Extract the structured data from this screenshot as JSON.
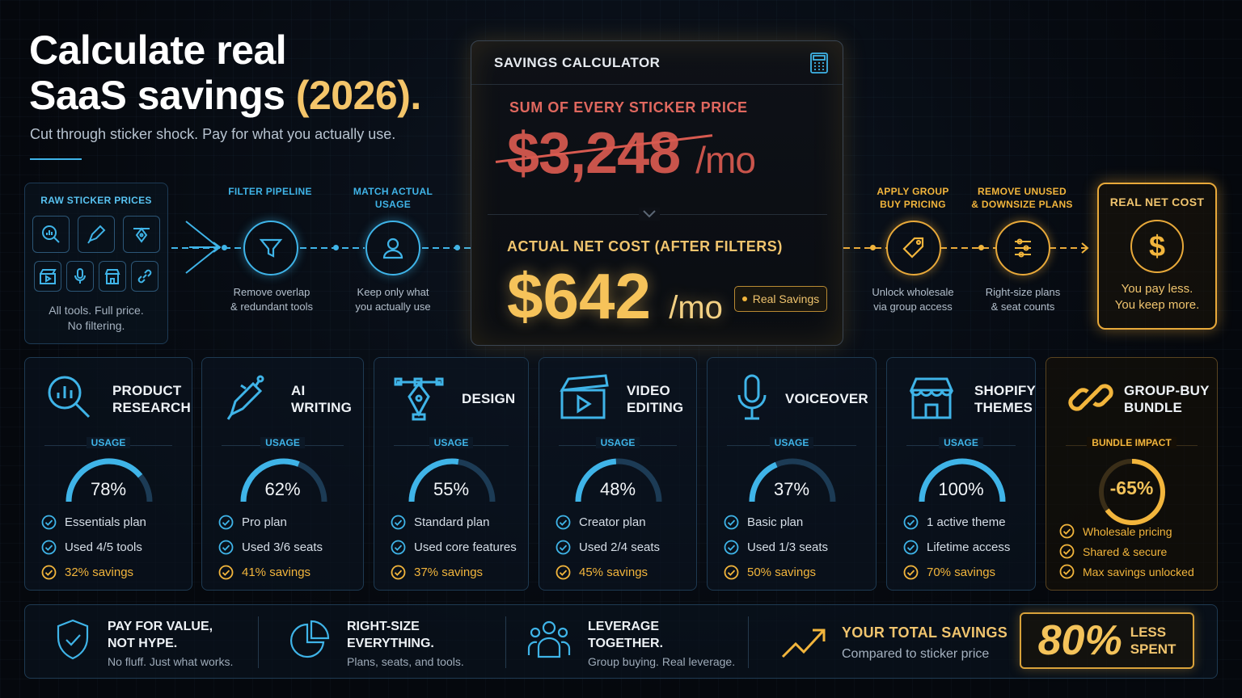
{
  "header": {
    "title_line1": "Calculate real",
    "title_line2": "SaaS savings",
    "title_year": "(2026).",
    "subtitle": "Cut through sticker shock. Pay for what you actually use."
  },
  "raw_box": {
    "title": "RAW STICKER PRICES",
    "line1": "All tools. Full price.",
    "line2": "No filtering."
  },
  "pipeline": {
    "filter": {
      "label": "FILTER PIPELINE",
      "desc1": "Remove overlap",
      "desc2": "& redundant tools"
    },
    "match": {
      "label1": "MATCH ACTUAL",
      "label2": "USAGE",
      "desc1": "Keep only what",
      "desc2": "you actually use"
    },
    "group": {
      "label1": "APPLY GROUP",
      "label2": "BUY PRICING",
      "desc1": "Unlock wholesale",
      "desc2": "via group access"
    },
    "remove": {
      "label1": "REMOVE UNUSED",
      "label2": "& DOWNSIZE PLANS",
      "desc1": "Right-size plans",
      "desc2": "& seat counts"
    }
  },
  "calculator": {
    "title": "SAVINGS CALCULATOR",
    "sum_label": "SUM OF EVERY STICKER PRICE",
    "sticker_price": "$3,248",
    "per": "/mo",
    "net_label": "ACTUAL NET COST (AFTER FILTERS)",
    "net_price": "$642",
    "badge": "Real Savings"
  },
  "real_net": {
    "title": "REAL NET COST",
    "symbol": "$",
    "line1": "You pay less.",
    "line2": "You keep more."
  },
  "usage_label": "USAGE",
  "cards": [
    {
      "t1": "PRODUCT",
      "t2": "RESEARCH",
      "usage": 78,
      "pct": "78%",
      "c1": "Essentials plan",
      "c2": "Used 4/5 tools",
      "c3": "32% savings"
    },
    {
      "t1": "AI",
      "t2": "WRITING",
      "usage": 62,
      "pct": "62%",
      "c1": "Pro plan",
      "c2": "Used 3/6 seats",
      "c3": "41% savings"
    },
    {
      "t1": "DESIGN",
      "t2": "",
      "usage": 55,
      "pct": "55%",
      "c1": "Standard plan",
      "c2": "Used core features",
      "c3": "37% savings"
    },
    {
      "t1": "VIDEO",
      "t2": "EDITING",
      "usage": 48,
      "pct": "48%",
      "c1": "Creator plan",
      "c2": "Used 2/4 seats",
      "c3": "45% savings"
    },
    {
      "t1": "VOICEOVER",
      "t2": "",
      "usage": 37,
      "pct": "37%",
      "c1": "Basic plan",
      "c2": "Used 1/3 seats",
      "c3": "50% savings"
    },
    {
      "t1": "SHOPIFY",
      "t2": "THEMES",
      "usage": 100,
      "pct": "100%",
      "c1": "1 active theme",
      "c2": "Lifetime access",
      "c3": "70% savings"
    }
  ],
  "bundle": {
    "t1": "GROUP-BUY",
    "t2": "BUNDLE",
    "label": "BUNDLE IMPACT",
    "impact": 65,
    "pct": "-65%",
    "c1": "Wholesale pricing",
    "c2": "Shared & secure",
    "c3": "Max savings unlocked"
  },
  "bottom": {
    "f1": {
      "h1": "PAY FOR VALUE,",
      "h2": "NOT HYPE.",
      "p": "No fluff. Just what works."
    },
    "f2": {
      "h1": "RIGHT-SIZE",
      "h2": "EVERYTHING.",
      "p": "Plans, seats, and tools."
    },
    "f3": {
      "h1": "LEVERAGE",
      "h2": "TOGETHER.",
      "p": "Group buying. Real leverage."
    },
    "total_label": "YOUR TOTAL SAVINGS",
    "total_sub": "Compared to sticker price",
    "total_pct": "80%",
    "less": "LESS",
    "spent": "SPENT"
  },
  "colors": {
    "accent_cyan": "#3fb4e8",
    "accent_gold": "#f2b53c",
    "sticker_red": "#c9544b"
  }
}
